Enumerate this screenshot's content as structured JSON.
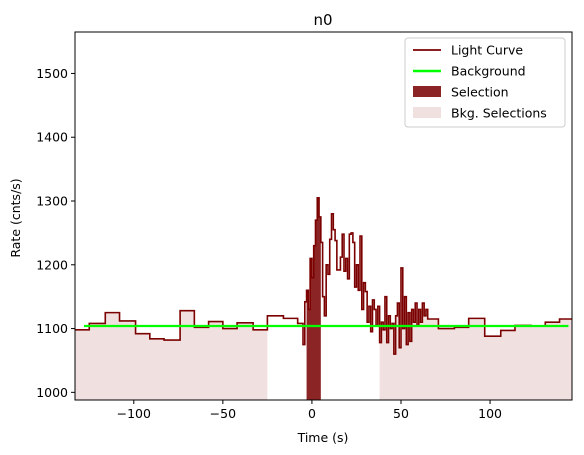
{
  "chart_data": {
    "type": "line",
    "title": "n0",
    "xlabel": "Time (s)",
    "ylabel": "Rate (cnts/s)",
    "xlim": [
      -133,
      146
    ],
    "ylim": [
      988,
      1565
    ],
    "xticks": [
      -100,
      -50,
      0,
      50,
      100
    ],
    "yticks": [
      1000,
      1100,
      1200,
      1300,
      1400,
      1500
    ],
    "grid": false,
    "legend_position": "top-right",
    "colors": {
      "light_curve": "#7b0000",
      "background": "#00ff00",
      "selection": "#8b2424",
      "bkg_selection": "#f0e0e0"
    },
    "legend": [
      {
        "label": "Light Curve",
        "kind": "line",
        "color": "#7b0000"
      },
      {
        "label": "Background",
        "kind": "line",
        "color": "#00ff00"
      },
      {
        "label": "Selection",
        "kind": "patch",
        "color": "#8b2424"
      },
      {
        "label": "Bkg. Selections",
        "kind": "patch",
        "color": "#f0e0e0"
      }
    ],
    "background_level": 1104,
    "background_range": [
      -128,
      144
    ],
    "selection_range": [
      -3,
      5
    ],
    "bkg_selections": [
      [
        -133,
        -25
      ],
      [
        38,
        146
      ]
    ],
    "light_curve": [
      [
        -133,
        1098
      ],
      [
        -125,
        1108
      ],
      [
        -116,
        1125
      ],
      [
        -108,
        1112
      ],
      [
        -99,
        1092
      ],
      [
        -91,
        1084
      ],
      [
        -83,
        1082
      ],
      [
        -74,
        1128
      ],
      [
        -66,
        1102
      ],
      [
        -58,
        1111
      ],
      [
        -50,
        1100
      ],
      [
        -42,
        1109
      ],
      [
        -33,
        1098
      ],
      [
        -25,
        1120
      ],
      [
        -16,
        1116
      ],
      [
        -8,
        1108
      ],
      [
        -5,
        1075
      ],
      [
        -4,
        1142
      ],
      [
        -3,
        1160
      ],
      [
        -2,
        1130
      ],
      [
        -1,
        1210
      ],
      [
        0,
        1180
      ],
      [
        1,
        1230
      ],
      [
        2,
        1270
      ],
      [
        3,
        1305
      ],
      [
        4,
        1275
      ],
      [
        5,
        1235
      ],
      [
        6,
        1150
      ],
      [
        7,
        1120
      ],
      [
        8,
        1200
      ],
      [
        9,
        1185
      ],
      [
        10,
        1240
      ],
      [
        11,
        1280
      ],
      [
        12,
        1255
      ],
      [
        13,
        1238
      ],
      [
        14,
        1192
      ],
      [
        16,
        1212
      ],
      [
        17,
        1248
      ],
      [
        18,
        1190
      ],
      [
        19,
        1210
      ],
      [
        20,
        1178
      ],
      [
        21,
        1248
      ],
      [
        22,
        1250
      ],
      [
        23,
        1235
      ],
      [
        24,
        1165
      ],
      [
        25,
        1200
      ],
      [
        26,
        1160
      ],
      [
        27,
        1245
      ],
      [
        28,
        1130
      ],
      [
        29,
        1172
      ],
      [
        30,
        1158
      ],
      [
        31,
        1110
      ],
      [
        32,
        1135
      ],
      [
        33,
        1095
      ],
      [
        34,
        1145
      ],
      [
        35,
        1130
      ],
      [
        36,
        1105
      ],
      [
        37,
        1135
      ],
      [
        38,
        1078
      ],
      [
        39,
        1110
      ],
      [
        40,
        1098
      ],
      [
        41,
        1150
      ],
      [
        42,
        1078
      ],
      [
        43,
        1120
      ],
      [
        44,
        1100
      ],
      [
        45,
        1108
      ],
      [
        46,
        1060
      ],
      [
        47,
        1120
      ],
      [
        48,
        1140
      ],
      [
        49,
        1070
      ],
      [
        50,
        1195
      ],
      [
        51,
        1100
      ],
      [
        52,
        1150
      ],
      [
        53,
        1075
      ],
      [
        54,
        1125
      ],
      [
        55,
        1080
      ],
      [
        56,
        1130
      ],
      [
        57,
        1110
      ],
      [
        58,
        1140
      ],
      [
        59,
        1105
      ],
      [
        60,
        1130
      ],
      [
        61,
        1110
      ],
      [
        62,
        1140
      ],
      [
        63,
        1120
      ],
      [
        64,
        1130
      ],
      [
        65,
        1115
      ],
      [
        71,
        1100
      ],
      [
        80,
        1102
      ],
      [
        88,
        1116
      ],
      [
        97,
        1088
      ],
      [
        106,
        1097
      ],
      [
        114,
        1105
      ],
      [
        123,
        1104
      ],
      [
        131,
        1110
      ],
      [
        139,
        1115
      ],
      [
        146,
        1115
      ]
    ]
  }
}
